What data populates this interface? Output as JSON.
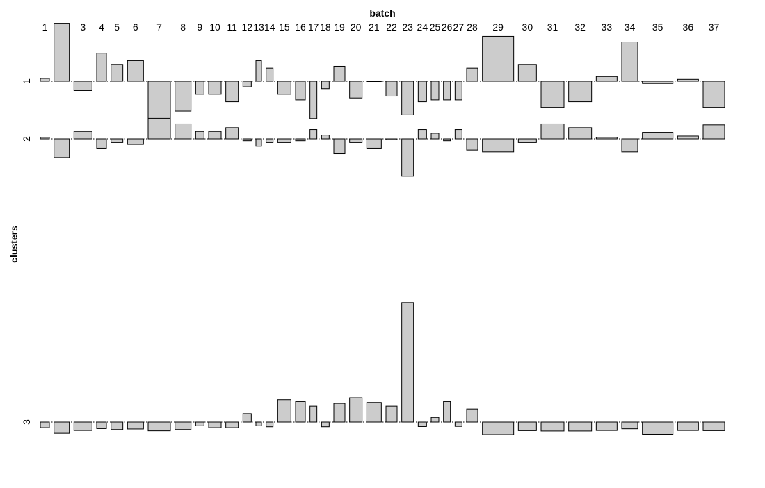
{
  "chart_data": {
    "type": "bar",
    "plot_kind": "association-plot",
    "title": "batch",
    "ylabel": "clusters",
    "x_variable": "batch",
    "y_variable": "clusters",
    "categories": [
      "1",
      "2",
      "3",
      "4",
      "5",
      "6",
      "7",
      "8",
      "9",
      "10",
      "11",
      "12",
      "13",
      "14",
      "15",
      "16",
      "17",
      "18",
      "19",
      "20",
      "21",
      "22",
      "23",
      "24",
      "25",
      "26",
      "27",
      "28",
      "29",
      "30",
      "31",
      "32",
      "33",
      "34",
      "35",
      "36",
      "37"
    ],
    "column_widths": [
      13,
      22,
      26,
      14,
      17,
      23,
      32,
      23,
      12,
      18,
      18,
      12,
      8,
      10,
      19,
      14,
      10,
      11,
      16,
      18,
      21,
      16,
      17,
      12,
      11,
      10,
      10,
      16,
      45,
      26,
      33,
      33,
      30,
      23,
      44,
      30,
      31
    ],
    "rows": [
      {
        "name": "1",
        "values": [
          1.5,
          31,
          -5,
          15,
          9,
          11,
          -22,
          -16,
          -7,
          -7,
          -11,
          -3,
          11,
          7,
          -7,
          -10,
          -20,
          -4,
          8,
          -9,
          0,
          -8,
          -18,
          -11,
          -10,
          -10,
          -10,
          7,
          24,
          9,
          -14,
          -11,
          2.5,
          21,
          -1.2,
          1,
          -14
        ]
      },
      {
        "name": "2",
        "values": [
          0.8,
          -10,
          4,
          -5,
          -2,
          -3,
          11,
          8,
          4,
          4,
          6,
          -1,
          -4,
          -2,
          -2,
          -1,
          5,
          2,
          -8,
          -2,
          -5,
          -0.5,
          -20,
          5,
          3,
          -1,
          5,
          -6,
          -7,
          -2,
          8,
          6,
          0.8,
          -7,
          3.5,
          1.5,
          7.5
        ]
      },
      {
        "name": "3",
        "values": [
          -3,
          -6,
          -4.5,
          -3.5,
          -4,
          -3.7,
          -4.7,
          -4,
          -2,
          -3,
          -3,
          4.5,
          -2,
          -2.5,
          12,
          11,
          8.5,
          -2.5,
          10,
          13,
          10.5,
          8.5,
          64,
          -2.4,
          2.5,
          11,
          -2.3,
          7,
          -6.7,
          -4.6,
          -4.8,
          -4.8,
          -4.5,
          -3.6,
          -6.5,
          -4.5,
          -4.6
        ]
      }
    ]
  }
}
